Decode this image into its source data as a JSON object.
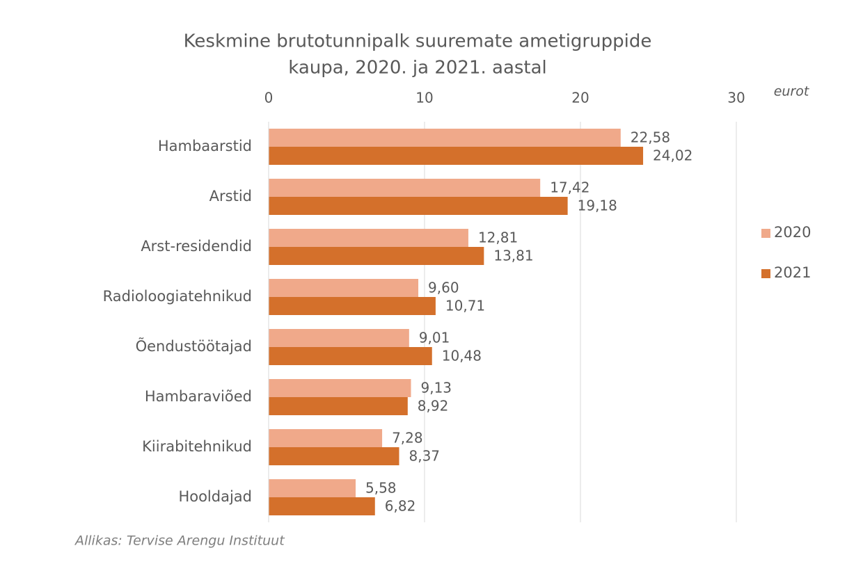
{
  "chart_data": {
    "type": "bar",
    "orientation": "horizontal",
    "title": [
      "Keskmine brutotunnipalk suuremate ametigruppide",
      "kaupa, 2020. ja 2021. aastal"
    ],
    "unit_label": "eurot",
    "source": "Allikas: Tervise Arengu Instituut",
    "categories": [
      "Hambaarstid",
      "Arstid",
      "Arst-residendid",
      "Radioloogiatehnikud",
      "Õendustöötajad",
      "Hambaraviõed",
      "Kiirabitehnikud",
      "Hooldajad"
    ],
    "series": [
      {
        "name": "2020",
        "color": "#f0a98a",
        "values": [
          22.58,
          17.42,
          12.81,
          9.6,
          9.01,
          9.13,
          7.28,
          5.58
        ],
        "value_labels": [
          "22,58",
          "17,42",
          "12,81",
          "9,60",
          "9,01",
          "9,13",
          "7,28",
          "5,58"
        ]
      },
      {
        "name": "2021",
        "color": "#d4702b",
        "values": [
          24.02,
          19.18,
          13.81,
          10.71,
          10.48,
          8.92,
          8.37,
          6.82
        ],
        "value_labels": [
          "24,02",
          "19,18",
          "13,81",
          "10,71",
          "10,48",
          "8,92",
          "8,37",
          "6,82"
        ]
      }
    ],
    "xlim": [
      0,
      30
    ],
    "xticks": [
      0,
      10,
      20,
      30
    ],
    "grid": true,
    "legend": "right"
  }
}
